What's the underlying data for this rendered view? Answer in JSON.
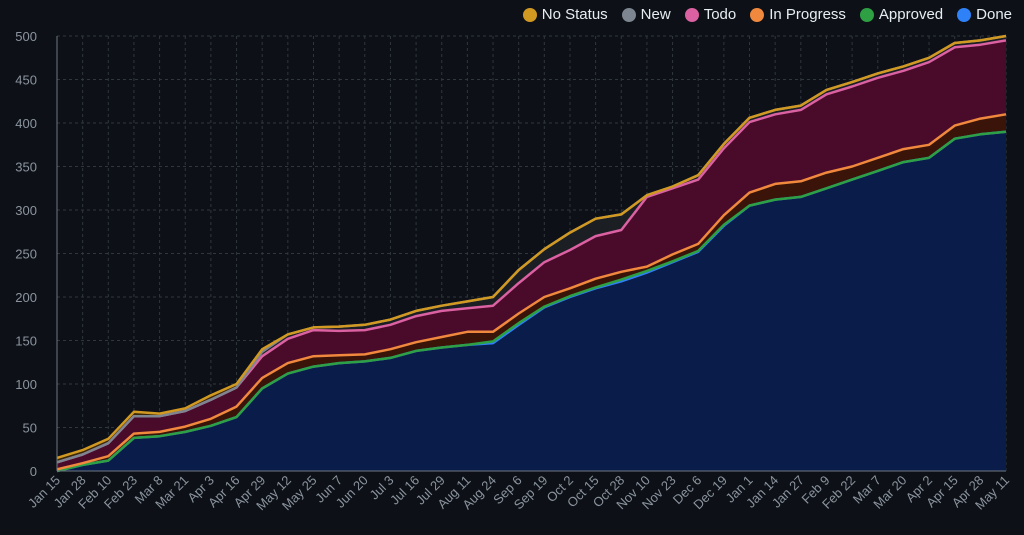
{
  "chart_data": {
    "type": "area",
    "stacked": true,
    "ylim": [
      0,
      500
    ],
    "yticks": [
      0,
      50,
      100,
      150,
      200,
      250,
      300,
      350,
      400,
      450,
      500
    ],
    "grid": true,
    "legend_position": "top-right",
    "x": [
      "Jan 15",
      "Jan 28",
      "Feb 10",
      "Feb 23",
      "Mar 8",
      "Mar 21",
      "Apr 3",
      "Apr 16",
      "Apr 29",
      "May 12",
      "May 25",
      "Jun 7",
      "Jun 20",
      "Jul 3",
      "Jul 16",
      "Jul 29",
      "Aug 11",
      "Aug 24",
      "Sep 6",
      "Sep 19",
      "Oct 2",
      "Oct 15",
      "Oct 28",
      "Nov 10",
      "Nov 23",
      "Dec 6",
      "Dec 19",
      "Jan 1",
      "Jan 14",
      "Jan 27",
      "Feb 9",
      "Feb 22",
      "Mar 7",
      "Mar 20",
      "Apr 2",
      "Apr 15",
      "Apr 28",
      "May 11"
    ],
    "series": [
      {
        "name": "Done",
        "color": "#2f81f7",
        "fill": "#0a1d4a",
        "values": [
          0,
          7,
          12,
          38,
          40,
          45,
          52,
          62,
          95,
          112,
          120,
          124,
          126,
          130,
          138,
          142,
          145,
          147,
          168,
          188,
          200,
          210,
          218,
          228,
          240,
          252,
          282,
          305,
          312,
          315,
          325,
          335,
          345,
          355,
          360,
          382,
          387,
          390
        ]
      },
      {
        "name": "Approved",
        "color": "#2ea043",
        "fill": "#0d3a1a",
        "values": [
          0,
          0,
          0,
          0,
          0,
          0,
          0,
          0,
          0,
          0,
          0,
          0,
          0,
          0,
          0,
          0,
          0,
          2,
          2,
          1,
          1,
          1,
          2,
          2,
          1,
          1,
          1,
          0,
          0,
          0,
          0,
          0,
          0,
          0,
          0,
          0,
          0,
          0
        ]
      },
      {
        "name": "In Progress",
        "color": "#f0883e",
        "fill": "#3a1409",
        "values": [
          2,
          2,
          5,
          5,
          5,
          6,
          8,
          12,
          12,
          12,
          12,
          9,
          8,
          10,
          10,
          12,
          15,
          11,
          11,
          11,
          9,
          10,
          9,
          5,
          8,
          8,
          11,
          15,
          18,
          18,
          18,
          15,
          15,
          15,
          15,
          15,
          18,
          20
        ]
      },
      {
        "name": "Todo",
        "color": "#db61a2",
        "fill": "#4a0a2a",
        "values": [
          8,
          10,
          15,
          20,
          18,
          18,
          22,
          22,
          25,
          28,
          30,
          28,
          28,
          28,
          30,
          30,
          27,
          30,
          35,
          40,
          44,
          49,
          48,
          80,
          76,
          74,
          77,
          81,
          80,
          82,
          90,
          92,
          92,
          90,
          95,
          90,
          85,
          85
        ]
      },
      {
        "name": "New",
        "color": "#7d8590",
        "fill": "#1b1f24",
        "values": [
          0,
          0,
          0,
          0,
          0,
          0,
          0,
          0,
          5,
          5,
          3,
          5,
          6,
          6,
          6,
          6,
          8,
          10,
          15,
          15,
          20,
          20,
          18,
          2,
          2,
          5,
          5,
          5,
          5,
          5,
          5,
          5,
          5,
          5,
          5,
          5,
          5,
          5
        ]
      },
      {
        "name": "No Status",
        "color": "#d29922",
        "fill": "#3a2a09",
        "values": [
          5,
          5,
          5,
          5,
          3,
          3,
          5,
          4,
          3,
          0,
          0,
          0,
          0,
          0,
          0,
          0,
          0,
          0,
          0,
          0,
          0,
          0,
          0,
          0,
          0,
          0,
          0,
          0,
          0,
          0,
          0,
          0,
          0,
          0,
          0,
          0,
          0,
          0
        ]
      }
    ],
    "legend": [
      "No Status",
      "New",
      "Todo",
      "In Progress",
      "Approved",
      "Done"
    ]
  },
  "legend_items": [
    {
      "label": "No Status",
      "color": "#d29922"
    },
    {
      "label": "New",
      "color": "#7d8590"
    },
    {
      "label": "Todo",
      "color": "#db61a2"
    },
    {
      "label": "In Progress",
      "color": "#f0883e"
    },
    {
      "label": "Approved",
      "color": "#2ea043"
    },
    {
      "label": "Done",
      "color": "#2f81f7"
    }
  ]
}
